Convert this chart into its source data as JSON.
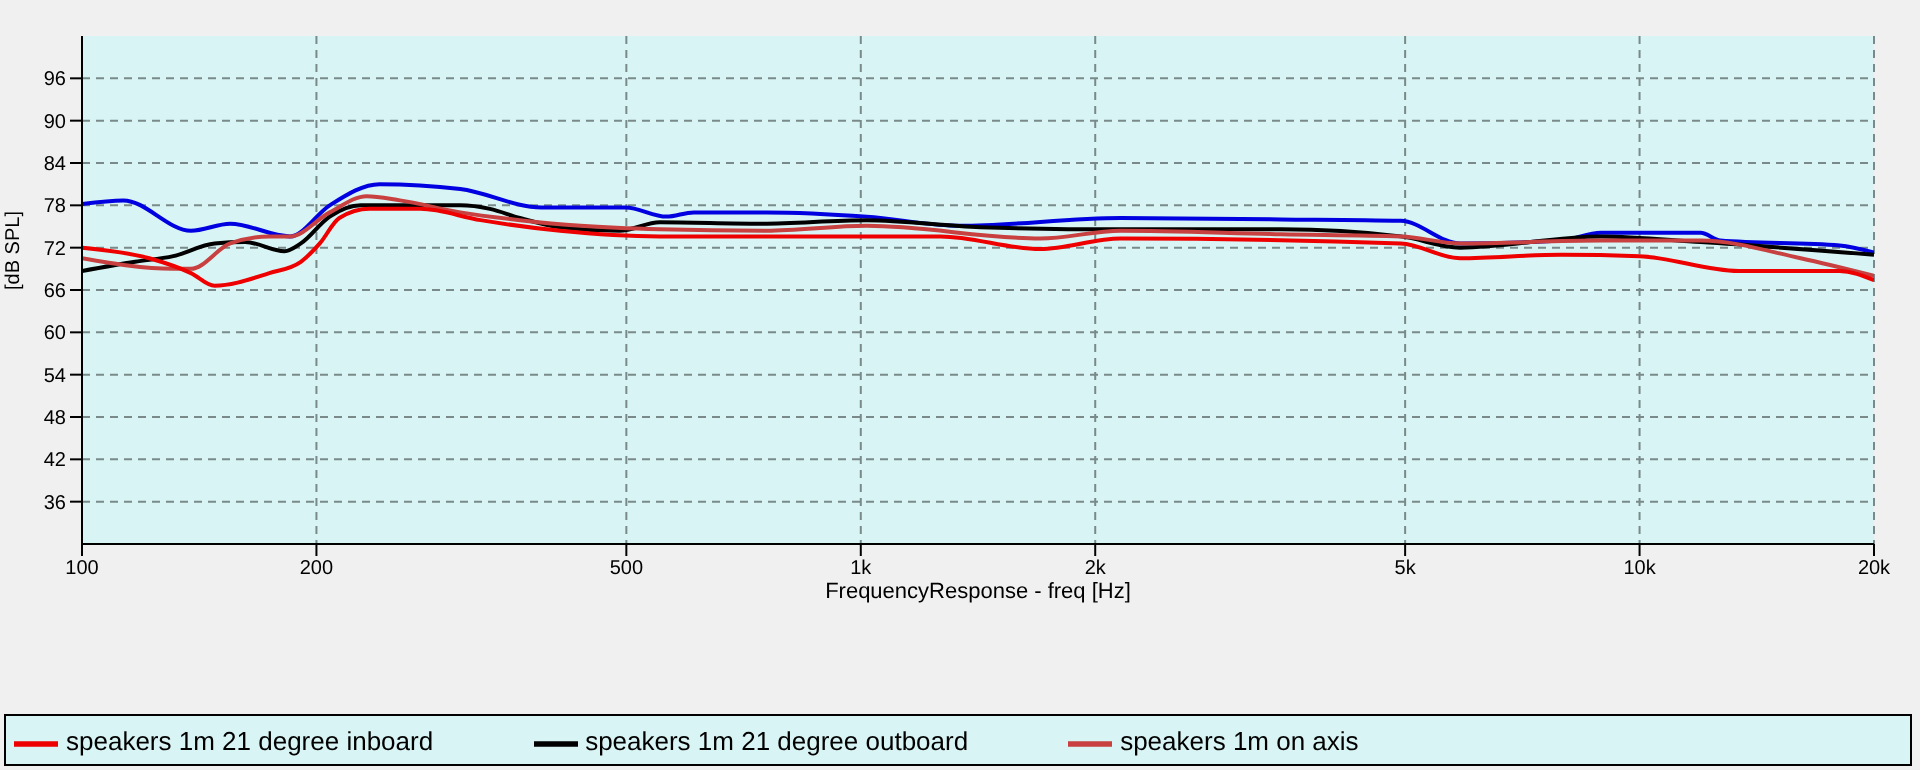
{
  "chart_data": {
    "type": "line",
    "xlabel": "FrequencyResponse - freq [Hz]",
    "ylabel": "[dB SPL]",
    "log": "x",
    "xlim": [
      100,
      20000
    ],
    "xticks": [
      100,
      200,
      500,
      {
        "value": 1000,
        "label": "1k"
      },
      {
        "value": 2000,
        "label": "2k"
      },
      {
        "value": 5000,
        "label": "5k"
      },
      {
        "value": 10000,
        "label": "10k"
      },
      {
        "value": 20000,
        "label": "20k"
      }
    ],
    "ylim": [
      30,
      102
    ],
    "yticks": [
      36,
      42,
      48,
      54,
      60,
      66,
      72,
      78,
      84,
      90,
      96
    ],
    "grid": true,
    "legend": "bottom",
    "marker": "none",
    "line_style": "solid",
    "series": [
      {
        "color": "#0000e0",
        "x": [
          100,
          113,
          138,
          155,
          185,
          208,
          241,
          306,
          389,
          499,
          563,
          610,
          756,
          1018,
          1342,
          2156,
          3464,
          4937,
          5883,
          7929,
          8923,
          11980,
          12700,
          18070,
          20000
        ],
        "values": [
          78.2,
          78.7,
          74.4,
          75.4,
          73.6,
          78,
          81,
          80.3,
          77.7,
          77.7,
          76.4,
          77,
          77,
          76.4,
          75.1,
          76.2,
          76,
          75.8,
          72.6,
          73,
          74.1,
          74.1,
          73,
          72.3,
          71.3
        ]
      },
      {
        "name": "speakers 1m 21 degree outboard",
        "color": "#000000",
        "x": [
          100,
          117,
          131,
          148,
          162,
          182,
          191,
          208,
          228,
          256,
          306,
          334,
          365,
          411,
          490,
          552,
          742,
          1018,
          1424,
          2156,
          3464,
          4937,
          5883,
          8923,
          11980,
          20000
        ],
        "values": [
          68.7,
          70,
          70.8,
          72.6,
          72.8,
          71.5,
          72.6,
          76.4,
          78,
          78,
          78,
          77.5,
          76.2,
          74.9,
          74.4,
          75.6,
          75.4,
          75.9,
          74.9,
          74.6,
          74.6,
          73.6,
          72,
          73.6,
          72.8,
          71
        ]
      },
      {
        "name": "speakers 1m on axis",
        "color": "#c84040",
        "x": [
          100,
          131,
          138,
          155,
          174,
          185,
          208,
          232,
          256,
          306,
          365,
          437,
          552,
          756,
          1018,
          1700,
          2156,
          3464,
          4937,
          5883,
          8923,
          11980,
          16100,
          20000
        ],
        "values": [
          70.5,
          69,
          69,
          72.6,
          73.6,
          73.6,
          77,
          79.3,
          78.7,
          77,
          75.9,
          75.1,
          74.6,
          74.4,
          75.1,
          73.3,
          74.4,
          73.9,
          73.6,
          72.6,
          73,
          73,
          70.5,
          68
        ]
      },
      {
        "name": "speakers 1m 21 degree inboard",
        "color": "#ee0000",
        "x": [
          100,
          122,
          138,
          148,
          174,
          191,
          202,
          214,
          234,
          272,
          325,
          411,
          552,
          1018,
          1266,
          1700,
          2156,
          4937,
          5883,
          7929,
          10000,
          13400,
          18070,
          20000
        ],
        "values": [
          72,
          70.5,
          68.4,
          66.6,
          68.4,
          70,
          72.6,
          76.2,
          77.5,
          77.5,
          75.9,
          74.4,
          73.6,
          73.6,
          73.6,
          71.8,
          73.3,
          72.6,
          70.5,
          71,
          70.8,
          68.7,
          68.7,
          67.4
        ]
      }
    ]
  }
}
